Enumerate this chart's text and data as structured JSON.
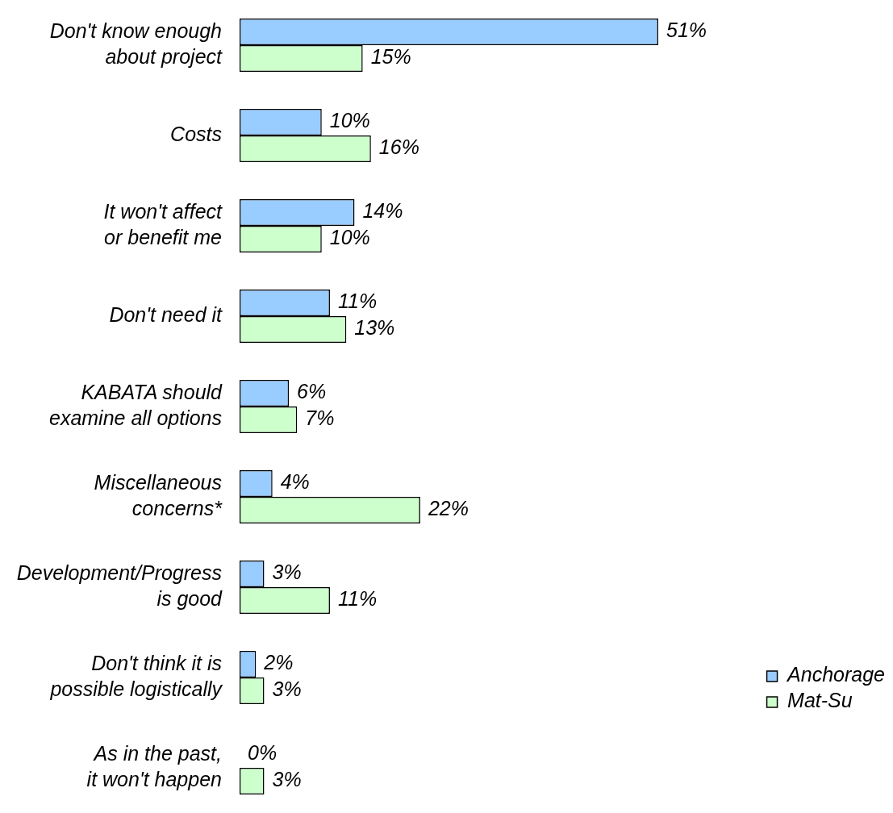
{
  "chart_data": {
    "type": "bar",
    "orientation": "horizontal",
    "categories": [
      "Don't know enough\nabout project",
      "Costs",
      "It won't affect\nor benefit me",
      "Don't need it",
      "KABATA should\nexamine all options",
      "Miscellaneous\nconcerns*",
      "Development/Progress\nis good",
      "Don't think it is\npossible logistically",
      "As in the past,\nit won't happen"
    ],
    "series": [
      {
        "name": "Anchorage",
        "color": "#99ccff",
        "values": [
          51,
          10,
          14,
          11,
          6,
          4,
          3,
          2,
          0
        ],
        "value_labels": [
          "51%",
          "10%",
          "14%",
          "11%",
          "6%",
          "4%",
          "3%",
          "2%",
          "0%"
        ]
      },
      {
        "name": "Mat-Su",
        "color": "#ccffcc",
        "values": [
          15,
          16,
          10,
          13,
          7,
          22,
          11,
          3,
          3
        ],
        "value_labels": [
          "15%",
          "16%",
          "10%",
          "13%",
          "7%",
          "22%",
          "11%",
          "3%",
          "3%"
        ]
      }
    ],
    "tick_labels": "y",
    "legend": "bottom right"
  }
}
